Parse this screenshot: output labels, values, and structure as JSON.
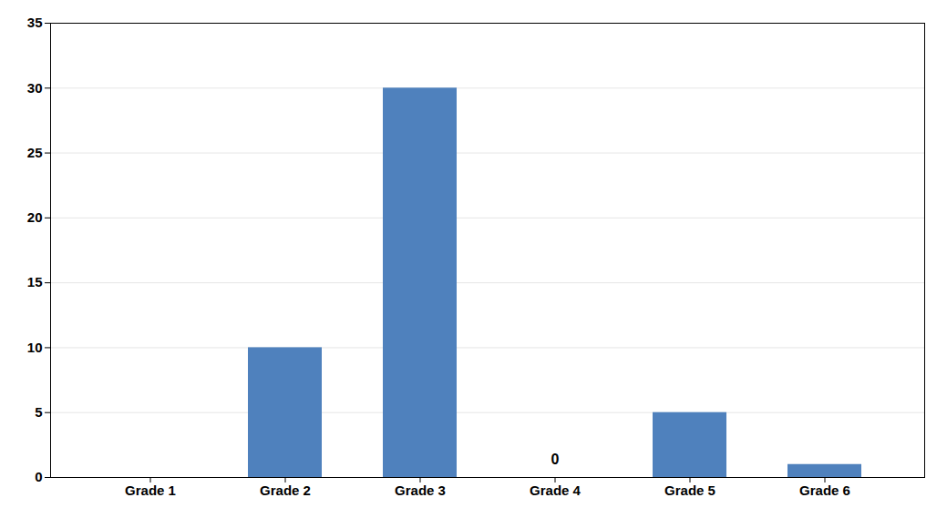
{
  "chart_data": {
    "type": "bar",
    "categories": [
      "Grade 1",
      "Grade 2",
      "Grade 3",
      "Grade 4",
      "Grade 5",
      "Grade 6"
    ],
    "values": [
      0,
      10,
      30,
      0,
      5,
      1
    ],
    "color": "#4F81BD",
    "ylim": [
      0,
      35
    ],
    "yticks": [
      0,
      5,
      10,
      15,
      20,
      25,
      30,
      35
    ],
    "grid": true,
    "annotations": [
      {
        "text": "0",
        "category": "Grade 4",
        "y": 1.0
      }
    ]
  }
}
